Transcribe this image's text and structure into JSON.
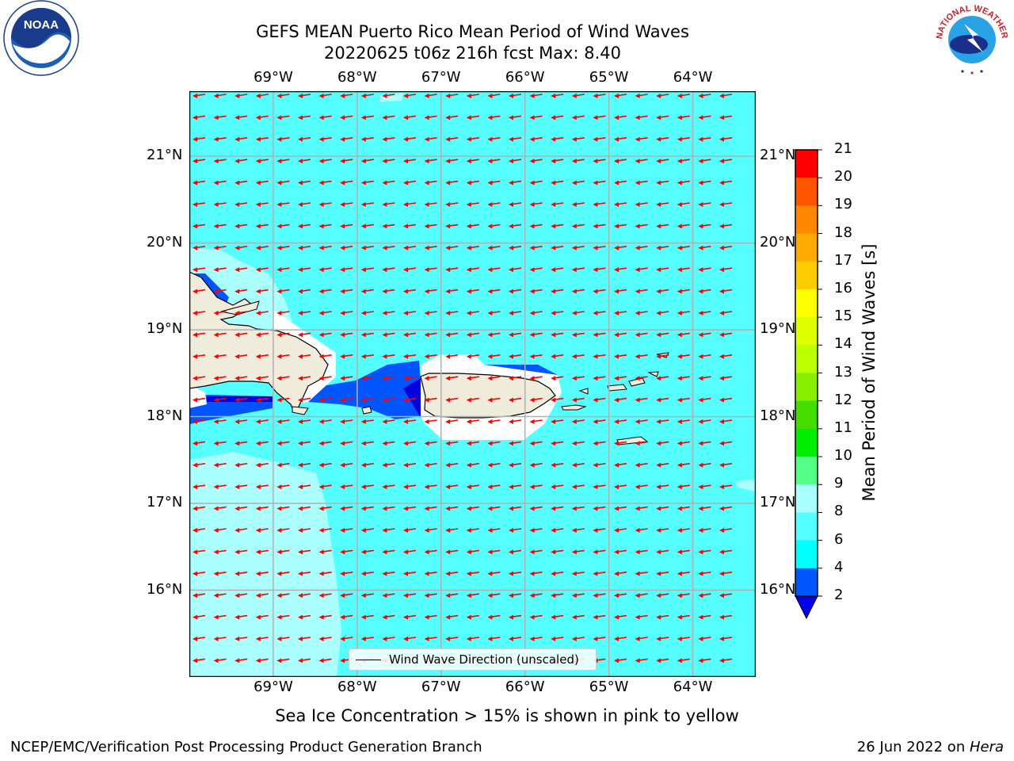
{
  "header": {
    "title_line1": "GEFS MEAN Puerto Rico Mean Period of Wind Waves",
    "title_line2": "20220625 t06z 216h fcst   Max: 8.40"
  },
  "logos": {
    "noaa": "NOAA",
    "nws": "NATIONAL WEATHER SERVICE"
  },
  "axes": {
    "lon_labels": [
      "69°W",
      "68°W",
      "67°W",
      "66°W",
      "65°W",
      "64°W"
    ],
    "lat_labels": [
      "21°N",
      "20°N",
      "19°N",
      "18°N",
      "17°N",
      "16°N"
    ],
    "lon_range": [
      -70,
      -63.25
    ],
    "lat_range": [
      15,
      21.75
    ],
    "grid": true
  },
  "colorbar": {
    "label": "Mean Period of Wind Waves [s]",
    "ticks": [
      "2",
      "4",
      "6",
      "8",
      "9",
      "10",
      "11",
      "12",
      "13",
      "14",
      "15",
      "16",
      "17",
      "18",
      "19",
      "20",
      "21"
    ],
    "colors": [
      "#0055ff",
      "#00ffff",
      "#55ffff",
      "#aaffff",
      "#55ff88",
      "#00ee00",
      "#44dd00",
      "#88ee00",
      "#bbff00",
      "#ddff00",
      "#ffff00",
      "#ffcc00",
      "#ffaa00",
      "#ff8800",
      "#ff5500",
      "#ff2200"
    ],
    "under_color": "#0000ee",
    "top_color": "#ff0000"
  },
  "legend": {
    "label": "Wind Wave Direction (unscaled)"
  },
  "colors": {
    "ocean": "#55ffff",
    "light_band": "#aaffff",
    "land": "#efecdc",
    "arrow": "#ff0000",
    "deep_blue": "#0055ff",
    "navy": "#0000dd"
  },
  "notes": {
    "sea_ice": "Sea Ice Concentration > 15% is shown in pink to yellow"
  },
  "footer": {
    "left": "NCEP/EMC/Verification Post Processing Product Generation Branch",
    "date": "26 Jun 2022 on ",
    "host": "Hera"
  }
}
